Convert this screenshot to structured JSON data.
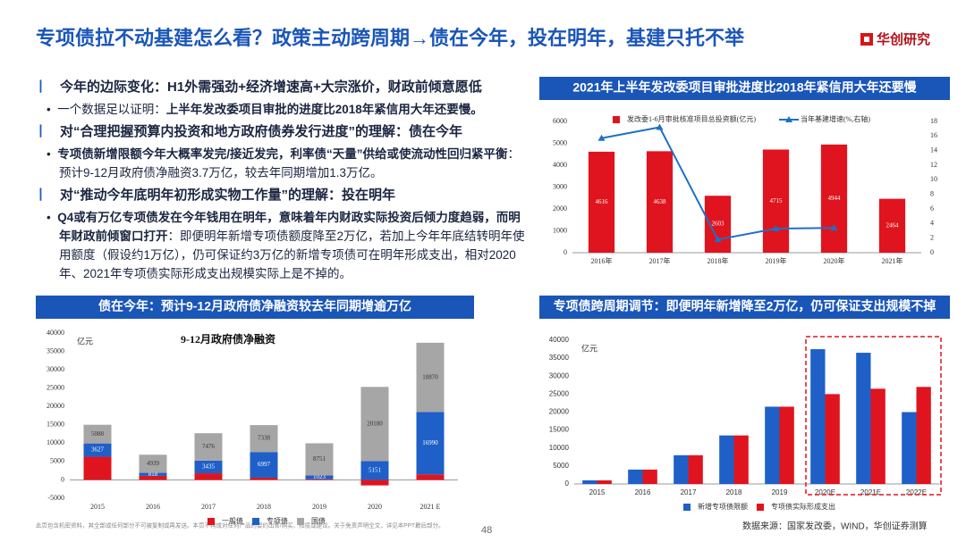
{
  "header": {
    "title": "专项债拉不动基建怎么看？政策主动跨周期→债在今年，投在明年，基建只托不举",
    "logo": "华创研究"
  },
  "text": {
    "sections": [
      {
        "heading": "今年的边际变化：H1外需强劲+经济增速高+大宗涨价，财政前倾意愿低",
        "bullet": [
          "一个数据足以证明：",
          "上半年发改委项目审批的进度比2018年紧信用大年还要慢。"
        ]
      },
      {
        "heading": "对“合理把握预算内投资和地方政府债券发行进度”的理解：债在今年",
        "bullet": [
          "专项债新增限额今年大概率发完/接近发完，利率债“天量”供给或使流动性回归紧平衡",
          "：预计9-12月政府债净融资3.7万亿，较去年同期增加1.3万亿。"
        ]
      },
      {
        "heading": "对“推动今年底明年初形成实物工作量”的理解：投在明年",
        "bullet": [
          "Q4或有万亿专项债发在今年钱用在明年，意味着年内财政实际投资后倾力度趋弱，而明年财政前倾窗口打开",
          "：即便明年新增专项债额度降至2万亿，若加上今年年底结转明年使用额度（假设约1万亿），仍可保证约3万亿的新增专项债可在明年形成支出，相对2020年、2021年专项债实际形成支出规模实际上是不掉的。"
        ]
      }
    ]
  },
  "chart_data": [
    {
      "type": "bar",
      "title": "2021年上半年发改委项目审批进度比2018年紧信用大年还要慢",
      "categories": [
        "2016年",
        "2017年",
        "2018年",
        "2019年",
        "2020年",
        "2021年"
      ],
      "series": [
        {
          "name": "发改委1-6月审批核准项目总投资额(亿元)",
          "color": "#e0141e",
          "values": [
            4616,
            4638,
            2603,
            4715,
            4944,
            2464
          ],
          "show_labels": true,
          "label_color": "#ffffff"
        },
        {
          "name": "当年基建增速(%,右轴)",
          "type": "line",
          "axis": "y2",
          "color": "#1f6fc5",
          "values": [
            15.7,
            17.2,
            1.8,
            3.3,
            3.4,
            null
          ]
        }
      ],
      "ylim": [
        0,
        6000
      ],
      "yticks": [
        0,
        1000,
        2000,
        3000,
        4000,
        5000,
        6000
      ],
      "y2lim": [
        0,
        18
      ],
      "y2ticks": [
        0,
        2,
        4,
        6,
        8,
        10,
        12,
        14,
        16,
        18
      ],
      "grid": false,
      "legend": "top"
    },
    {
      "type": "stacked_bar",
      "title": "债在今年：预计9-12月政府债净融资较去年同期增逾万亿",
      "subtitle": "9-12月政府债净融资",
      "y_label": "亿元",
      "categories": [
        "2015",
        "2016",
        "2017",
        "2018",
        "2019",
        "2020",
        "2021 E"
      ],
      "series": [
        {
          "name": "一般债",
          "color": "#e0141e",
          "values": [
            6300,
            1100,
            1800,
            600,
            200,
            -1500,
            1500
          ]
        },
        {
          "name": "专项债",
          "color": "#1f5fc8",
          "values": [
            3627,
            818,
            3435,
            6997,
            1023,
            5151,
            16990
          ],
          "show_labels": true,
          "label_color": "#ffffff"
        },
        {
          "name": "国债",
          "color": "#a6a6a6",
          "values": [
            5088,
            4939,
            7476,
            7338,
            8751,
            20180,
            18870
          ],
          "show_labels": true,
          "label_color": "#333333"
        }
      ],
      "ylim": [
        -5000,
        40000
      ],
      "yticks": [
        -5000,
        0,
        5000,
        10000,
        15000,
        20000,
        25000,
        30000,
        35000,
        40000
      ],
      "grid": false,
      "legend": "bottom"
    },
    {
      "type": "grouped_bar",
      "title": "专项债跨周期调节：即便明年新增降至2万亿，仍可保证支出规模不掉",
      "y_label": "亿元",
      "categories": [
        "2015",
        "2016",
        "2017",
        "2018",
        "2019",
        "2020E",
        "2021E",
        "2022E"
      ],
      "series": [
        {
          "name": "新增专项债限额",
          "color": "#1f5fc8",
          "values": [
            1000,
            4000,
            8000,
            13500,
            21500,
            37500,
            36500,
            20000
          ]
        },
        {
          "name": "专项债实际形成支出",
          "color": "#e0141e",
          "values": [
            1000,
            4000,
            8000,
            13500,
            21500,
            25000,
            26500,
            27000
          ]
        }
      ],
      "ylim": [
        0,
        40000
      ],
      "yticks": [
        0,
        5000,
        10000,
        15000,
        20000,
        25000,
        30000,
        35000,
        40000
      ],
      "grid": false,
      "legend": "bottom"
    }
  ],
  "footer": {
    "disclaimer": "此页包含机密资料，其全部或任何部分不可被复制或再发送。本页不构成对任何产品的要约出售/购买、招揽或建议。关于免责声明全文，详见本PPT最后部分。",
    "page": "48",
    "source": "数据来源：国家发改委，WIND，华创证券测算"
  }
}
